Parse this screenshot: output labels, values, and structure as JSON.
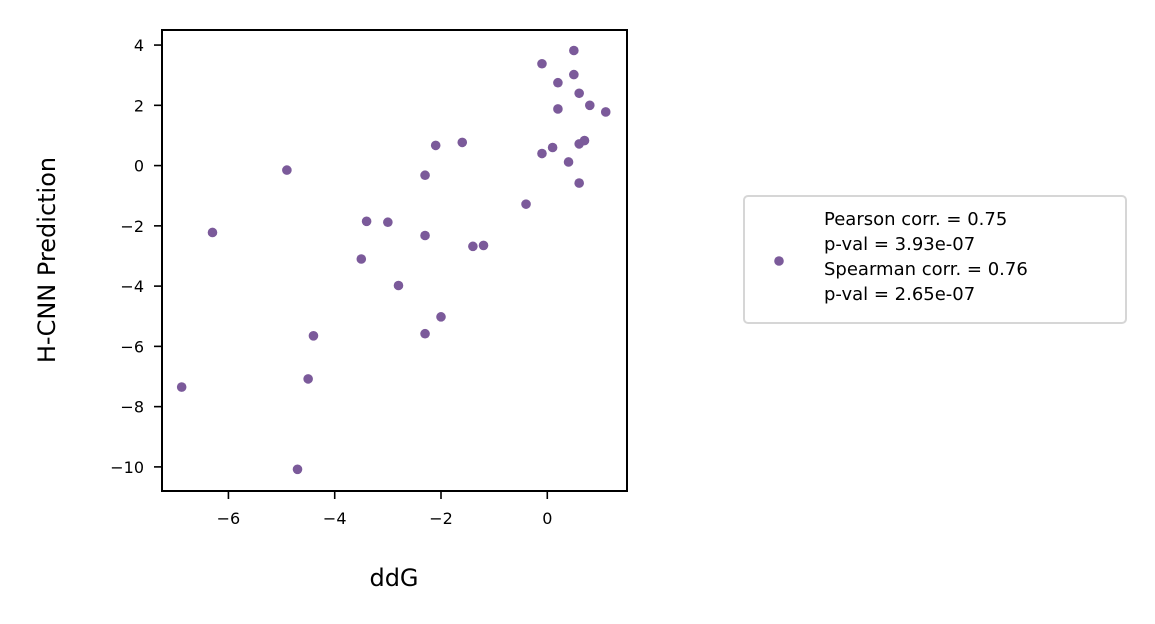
{
  "chart_data": {
    "type": "scatter",
    "xlabel": "ddG",
    "ylabel": "H-CNN Prediction",
    "xlim": [
      -7.25,
      1.5
    ],
    "ylim": [
      -10.8,
      4.5
    ],
    "xticks": [
      -6,
      -4,
      -2,
      0
    ],
    "yticks": [
      4,
      2,
      0,
      -2,
      -4,
      -6,
      -8,
      -10
    ],
    "xtick_labels": [
      "−6",
      "−4",
      "−2",
      "0"
    ],
    "ytick_labels": [
      "4",
      "2",
      "0",
      "−2",
      "−4",
      "−6",
      "−8",
      "−10"
    ],
    "grid": false,
    "legend_position": "right",
    "series": [
      {
        "name": "Pearson corr. = 0.75\np-val = 3.93e-07\nSpearman corr. = 0.76\np-val = 2.65e-07",
        "color": "#7b5a9a",
        "points": [
          {
            "x": -6.88,
            "y": -7.35
          },
          {
            "x": -6.3,
            "y": -2.22
          },
          {
            "x": -4.9,
            "y": -0.15
          },
          {
            "x": -4.7,
            "y": -10.08
          },
          {
            "x": -4.5,
            "y": -7.08
          },
          {
            "x": -4.4,
            "y": -5.65
          },
          {
            "x": -3.5,
            "y": -3.1
          },
          {
            "x": -3.4,
            "y": -1.85
          },
          {
            "x": -3.0,
            "y": -1.88
          },
          {
            "x": -2.8,
            "y": -3.98
          },
          {
            "x": -2.3,
            "y": -0.32
          },
          {
            "x": -2.3,
            "y": -2.32
          },
          {
            "x": -2.3,
            "y": -5.58
          },
          {
            "x": -2.1,
            "y": 0.67
          },
          {
            "x": -2.0,
            "y": -5.02
          },
          {
            "x": -1.6,
            "y": 0.77
          },
          {
            "x": -1.4,
            "y": -2.68
          },
          {
            "x": -1.2,
            "y": -2.65
          },
          {
            "x": -0.4,
            "y": -1.28
          },
          {
            "x": -0.1,
            "y": 3.38
          },
          {
            "x": -0.1,
            "y": 0.4
          },
          {
            "x": 0.1,
            "y": 0.6
          },
          {
            "x": 0.2,
            "y": 2.75
          },
          {
            "x": 0.2,
            "y": 1.88
          },
          {
            "x": 0.4,
            "y": 0.12
          },
          {
            "x": 0.5,
            "y": 3.82
          },
          {
            "x": 0.5,
            "y": 3.02
          },
          {
            "x": 0.6,
            "y": 2.4
          },
          {
            "x": 0.6,
            "y": 0.72
          },
          {
            "x": 0.6,
            "y": -0.58
          },
          {
            "x": 0.7,
            "y": 0.83
          },
          {
            "x": 0.8,
            "y": 2.0
          },
          {
            "x": 1.1,
            "y": 1.78
          }
        ]
      }
    ],
    "legend_lines": [
      "Pearson corr. = 0.75",
      "p-val = 3.93e-07",
      "Spearman corr. = 0.76",
      "p-val = 2.65e-07"
    ]
  }
}
